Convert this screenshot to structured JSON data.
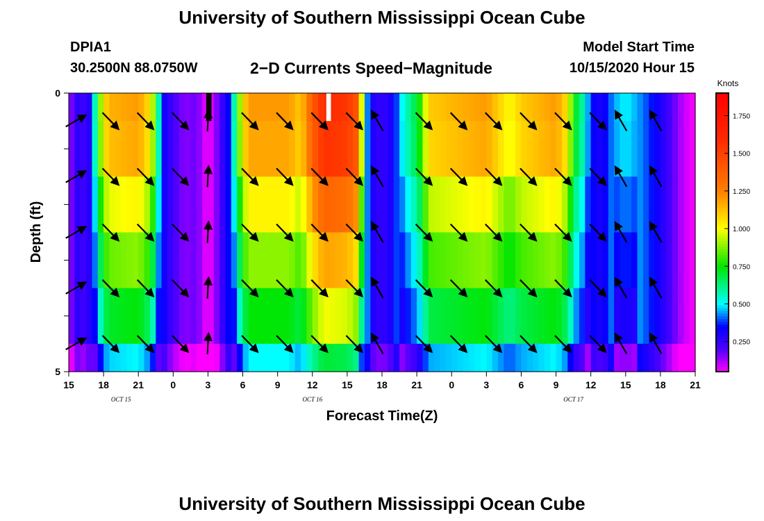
{
  "page": {
    "title_top": "University of Southern Mississippi Ocean Cube",
    "title_bottom": "University of Southern Mississippi Ocean Cube",
    "station_id": "DPIA1",
    "coordinates": "30.2500N 88.0750W",
    "subtitle": "2−D Currents Speed−Magnitude",
    "model_start_label": "Model Start Time",
    "model_start_value": "10/15/2020 Hour 15"
  },
  "chart_data": {
    "type": "heatmap",
    "title": "2-D Currents Speed-Magnitude",
    "xlabel": "Forecast Time(Z)",
    "ylabel": "Depth (ft)",
    "x_range": [
      0,
      54
    ],
    "y_range": [
      0,
      5
    ],
    "x_ticks": [
      {
        "h": 0,
        "label": "15"
      },
      {
        "h": 3,
        "label": "18"
      },
      {
        "h": 6,
        "label": "21"
      },
      {
        "h": 9,
        "label": "0"
      },
      {
        "h": 12,
        "label": "3"
      },
      {
        "h": 15,
        "label": "6"
      },
      {
        "h": 18,
        "label": "9"
      },
      {
        "h": 21,
        "label": "12"
      },
      {
        "h": 24,
        "label": "15"
      },
      {
        "h": 27,
        "label": "18"
      },
      {
        "h": 30,
        "label": "21"
      },
      {
        "h": 33,
        "label": "0"
      },
      {
        "h": 36,
        "label": "3"
      },
      {
        "h": 39,
        "label": "6"
      },
      {
        "h": 42,
        "label": "9"
      },
      {
        "h": 45,
        "label": "12"
      },
      {
        "h": 48,
        "label": "15"
      },
      {
        "h": 51,
        "label": "18"
      },
      {
        "h": 54,
        "label": "21"
      }
    ],
    "date_labels": [
      {
        "h": 4.5,
        "label": "OCT 15"
      },
      {
        "h": 21,
        "label": "OCT 16"
      },
      {
        "h": 43.5,
        "label": "OCT 17"
      }
    ],
    "y_ticks": [
      {
        "v": 0,
        "label": "0"
      },
      {
        "v": 5,
        "label": "5"
      }
    ],
    "depth_layers": 5,
    "colorbar": {
      "label": "Knots",
      "range": [
        0.05,
        1.9
      ],
      "ticks": [
        0.25,
        0.5,
        0.75,
        1.0,
        1.25,
        1.5,
        1.75
      ],
      "tick_labels": [
        "0.250",
        "0.500",
        "0.750",
        "1.000",
        "1.250",
        "1.500",
        "1.750"
      ]
    },
    "speed_profile_surface": [
      [
        0,
        0.12
      ],
      [
        0.5,
        0.22
      ],
      [
        1,
        0.3
      ],
      [
        1.5,
        0.18
      ],
      [
        2,
        0.38
      ],
      [
        2.5,
        0.75
      ],
      [
        3,
        1.05
      ],
      [
        3.5,
        1.15
      ],
      [
        6,
        1.2
      ],
      [
        7,
        1.05
      ],
      [
        7.5,
        0.8
      ],
      [
        8,
        0.35
      ],
      [
        9,
        0.22
      ],
      [
        10,
        0.15
      ],
      [
        11,
        0.18
      ],
      [
        11.6,
        0.1
      ],
      [
        12,
        0.05
      ],
      [
        12.4,
        0.1
      ],
      [
        13,
        0.2
      ],
      [
        14,
        0.4
      ],
      [
        14.5,
        0.75
      ],
      [
        15,
        1.05
      ],
      [
        15.5,
        1.2
      ],
      [
        19,
        1.2
      ],
      [
        20,
        1.1
      ],
      [
        21,
        1.4
      ],
      [
        22,
        1.6
      ],
      [
        24,
        1.55
      ],
      [
        25,
        1.4
      ],
      [
        25.5,
        0.55
      ],
      [
        26,
        0.3
      ],
      [
        27,
        0.25
      ],
      [
        28,
        0.32
      ],
      [
        28.5,
        0.45
      ],
      [
        29,
        0.55
      ],
      [
        30,
        0.7
      ],
      [
        30.5,
        0.85
      ],
      [
        31,
        1.1
      ],
      [
        36,
        1.2
      ],
      [
        37,
        1.1
      ],
      [
        38,
        1.0
      ],
      [
        39,
        1.1
      ],
      [
        42,
        1.2
      ],
      [
        43,
        1.05
      ],
      [
        43.5,
        0.75
      ],
      [
        44.5,
        0.55
      ],
      [
        45,
        0.35
      ],
      [
        46,
        0.3
      ],
      [
        47,
        0.45
      ],
      [
        48,
        0.5
      ],
      [
        49,
        0.45
      ],
      [
        50,
        0.38
      ],
      [
        51,
        0.3
      ],
      [
        52,
        0.2
      ],
      [
        53,
        0.1
      ],
      [
        54,
        0.05
      ]
    ],
    "layer_factors": [
      1.0,
      0.98,
      0.85,
      0.74,
      0.62,
      0.5
    ],
    "bottom_shift": 0.2,
    "vectors": [
      {
        "depth": 0.5,
        "hours": [
          3.6,
          6.6,
          9.6,
          15.6,
          18.6,
          21.6,
          24.6,
          30.6,
          33.6,
          36.6,
          39.6,
          42.6,
          45.6
        ],
        "dir": "SE",
        "len": 33
      },
      {
        "depth": 0.5,
        "hours": [
          12
        ],
        "dir": "N",
        "len": 30
      },
      {
        "depth": 1.5,
        "hours": [
          3.6,
          6.6,
          9.6,
          15.6,
          18.6,
          21.6,
          24.6,
          30.6,
          33.6,
          36.6,
          39.6,
          42.6,
          45.6
        ],
        "dir": "SE",
        "len": 33
      },
      {
        "depth": 1.5,
        "hours": [
          12
        ],
        "dir": "N",
        "len": 30
      },
      {
        "depth": 1.5,
        "hours": [
          0.6
        ],
        "dir": "NE",
        "len": 33
      },
      {
        "depth": 1.5,
        "hours": [
          26.6,
          47.6,
          50.6
        ],
        "dir": "NW",
        "len": 33
      },
      {
        "depth": 2.5,
        "hours": [
          3.6,
          6.6,
          9.6,
          15.6,
          18.6,
          21.6,
          24.6,
          30.6,
          33.6,
          36.6,
          39.6,
          42.6,
          45.6
        ],
        "dir": "SE",
        "len": 33
      },
      {
        "depth": 2.5,
        "hours": [
          12
        ],
        "dir": "N",
        "len": 30
      },
      {
        "depth": 2.5,
        "hours": [
          0.6
        ],
        "dir": "NE",
        "len": 33
      },
      {
        "depth": 2.5,
        "hours": [
          26.6,
          47.6,
          50.6
        ],
        "dir": "NW",
        "len": 33
      },
      {
        "depth": 3.5,
        "hours": [
          3.6,
          6.6,
          9.6,
          15.6,
          18.6,
          21.6,
          24.6,
          30.6,
          33.6,
          36.6,
          39.6,
          42.6,
          45.6
        ],
        "dir": "SE",
        "len": 33
      },
      {
        "depth": 3.5,
        "hours": [
          12
        ],
        "dir": "N",
        "len": 30
      },
      {
        "depth": 3.5,
        "hours": [
          0.6
        ],
        "dir": "NE",
        "len": 33
      },
      {
        "depth": 3.5,
        "hours": [
          26.6,
          47.6,
          50.6
        ],
        "dir": "NW",
        "len": 33
      },
      {
        "depth": 4.5,
        "hours": [
          3.6,
          6.6,
          9.6,
          15.6,
          18.6,
          21.6,
          24.6,
          30.6,
          33.6,
          36.6,
          39.6,
          42.6,
          45.6
        ],
        "dir": "SE",
        "len": 33
      },
      {
        "depth": 4.5,
        "hours": [
          12
        ],
        "dir": "N",
        "len": 30
      },
      {
        "depth": 4.5,
        "hours": [
          0.6
        ],
        "dir": "NE",
        "len": 33
      },
      {
        "depth": 4.5,
        "hours": [
          26.6,
          47.6,
          50.6
        ],
        "dir": "NW",
        "len": 33
      },
      {
        "depth": 0.5,
        "hours": [
          26.6,
          47.6,
          50.6
        ],
        "dir": "NW",
        "len": 33
      },
      {
        "depth": 0.5,
        "hours": [
          0.6
        ],
        "dir": "NE",
        "len": 33
      }
    ],
    "masked_cells": [
      {
        "h0": 11.85,
        "h1": 12.3,
        "depth0": 0,
        "depth1": 0.5,
        "color": "#000000"
      },
      {
        "h0": 22.2,
        "h1": 22.6,
        "depth0": 0,
        "depth1": 0.5,
        "color": "#ffffff"
      }
    ]
  }
}
